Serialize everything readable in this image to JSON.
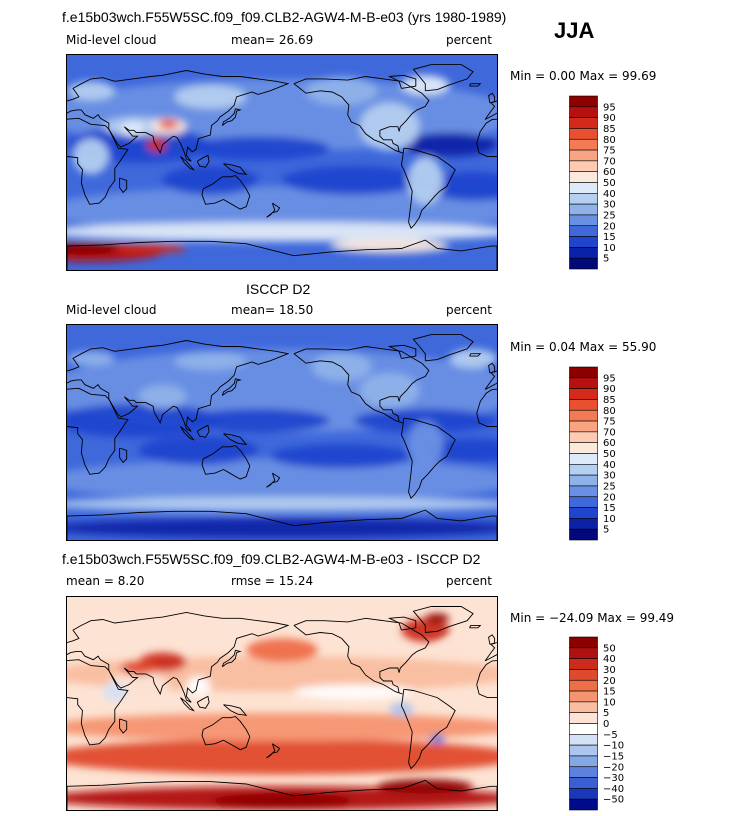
{
  "season": "JJA",
  "chart_data": [
    {
      "type": "heatmap",
      "panel_id": "p1",
      "title": "f.e15b03wch.F55W5SC.f09_f09.CLB2-AGW4-M-B-e03 (yrs 1980-1989)",
      "left_label": "Mid-level cloud",
      "center_label": "mean=  26.69",
      "right_label": "percent",
      "minmax": "Min =   0.00 Max =  99.69",
      "min": 0.0,
      "max": 99.69,
      "mean": 26.69,
      "levels": [
        "95",
        "90",
        "85",
        "80",
        "75",
        "70",
        "60",
        "50",
        "40",
        "30",
        "25",
        "20",
        "15",
        "10",
        "5"
      ],
      "colors": [
        "#8c0000",
        "#b80f0f",
        "#d42a1a",
        "#e8502f",
        "#f47a55",
        "#f8a483",
        "#fccbb2",
        "#fbe9dc",
        "#dfeaf8",
        "#b4cff0",
        "#8fb2ea",
        "#6a90e4",
        "#3f68db",
        "#1f45cf",
        "#0a22a8",
        "#00087a"
      ]
    },
    {
      "type": "heatmap",
      "panel_id": "p2",
      "title": "ISCCP D2",
      "left_label": "Mid-level cloud",
      "center_label": "mean=  18.50",
      "right_label": "percent",
      "minmax": "Min =   0.04 Max =  55.90",
      "min": 0.04,
      "max": 55.9,
      "mean": 18.5,
      "levels": [
        "95",
        "90",
        "85",
        "80",
        "75",
        "70",
        "60",
        "50",
        "40",
        "30",
        "25",
        "20",
        "15",
        "10",
        "5"
      ],
      "colors": [
        "#8c0000",
        "#b80f0f",
        "#d42a1a",
        "#e8502f",
        "#f47a55",
        "#f8a483",
        "#fccbb2",
        "#fbe9dc",
        "#dfeaf8",
        "#b4cff0",
        "#8fb2ea",
        "#6a90e4",
        "#3f68db",
        "#1f45cf",
        "#0a22a8",
        "#00087a"
      ]
    },
    {
      "type": "heatmap",
      "panel_id": "p3",
      "title": "f.e15b03wch.F55W5SC.f09_f09.CLB2-AGW4-M-B-e03 - ISCCP D2",
      "left_label": "mean =   8.20",
      "center_label": "rmse =  15.24",
      "right_label": "percent",
      "minmax": "Min = −24.09 Max =  99.49",
      "min": -24.09,
      "max": 99.49,
      "mean": 8.2,
      "rmse": 15.24,
      "levels": [
        "50",
        "40",
        "30",
        "20",
        "15",
        "10",
        "5",
        "0",
        "−5",
        "−10",
        "−15",
        "−20",
        "−30",
        "−40",
        "−50"
      ],
      "colors": [
        "#8c0000",
        "#b01010",
        "#cc2a1a",
        "#e04a2c",
        "#ee6e48",
        "#f59470",
        "#f9bd9f",
        "#fde3d3",
        "#ffffff",
        "#d5e2f6",
        "#acc6ee",
        "#86a7e6",
        "#5c82dd",
        "#3a5fd2",
        "#1b38bb",
        "#000a8a"
      ]
    }
  ],
  "icons": [
    "coastline-map"
  ]
}
